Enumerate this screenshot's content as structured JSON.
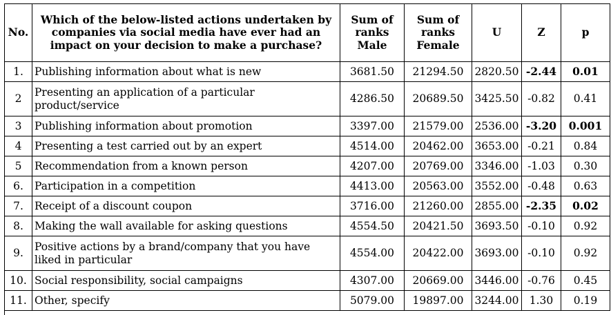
{
  "headers": {
    "no": "No.",
    "question": "Which of the below-listed actions undertaken by companies via social media have ever had an impact on your decision to make a purchase?",
    "sum_male": "Sum of ranks Male",
    "sum_female": "Sum of ranks Female",
    "u": "U",
    "z": "Z",
    "p": "p"
  },
  "rows": [
    {
      "no": "1.",
      "action": "Publishing information about what is new",
      "male": "3681.50",
      "female": "21294.50",
      "u": "2820.50",
      "z": "-2.44",
      "p": "0.01",
      "significant": true,
      "tall": false
    },
    {
      "no": "2",
      "action": "Presenting an application of a particular product/service",
      "male": "4286.50",
      "female": "20689.50",
      "u": "3425.50",
      "z": "-0.82",
      "p": "0.41",
      "significant": false,
      "tall": true
    },
    {
      "no": "3",
      "action": "Publishing information about promotion",
      "male": "3397.00",
      "female": "21579.00",
      "u": "2536.00",
      "z": "-3.20",
      "p": "0.001",
      "significant": true,
      "tall": false
    },
    {
      "no": "4",
      "action": "Presenting a test carried out by an expert",
      "male": "4514.00",
      "female": "20462.00",
      "u": "3653.00",
      "z": "-0.21",
      "p": "0.84",
      "significant": false,
      "tall": false
    },
    {
      "no": "5",
      "action": "Recommendation from a known person",
      "male": "4207.00",
      "female": "20769.00",
      "u": "3346.00",
      "z": "-1.03",
      "p": "0.30",
      "significant": false,
      "tall": false
    },
    {
      "no": "6.",
      "action": "Participation in a competition",
      "male": "4413.00",
      "female": "20563.00",
      "u": "3552.00",
      "z": "-0.48",
      "p": "0.63",
      "significant": false,
      "tall": false
    },
    {
      "no": "7.",
      "action": "Receipt of a discount coupon",
      "male": "3716.00",
      "female": "21260.00",
      "u": "2855.00",
      "z": "-2.35",
      "p": "0.02",
      "significant": true,
      "tall": false
    },
    {
      "no": "8.",
      "action": "Making the wall available for asking questions",
      "male": "4554.50",
      "female": "20421.50",
      "u": "3693.50",
      "z": "-0.10",
      "p": "0.92",
      "significant": false,
      "tall": false
    },
    {
      "no": "9.",
      "action": "Positive actions by a brand/company that you have liked in particular",
      "male": "4554.00",
      "female": "20422.00",
      "u": "3693.00",
      "z": "-0.10",
      "p": "0.92",
      "significant": false,
      "tall": true
    },
    {
      "no": "10.",
      "action": "Social responsibility, social campaigns",
      "male": "4307.00",
      "female": "20669.00",
      "u": "3446.00",
      "z": "-0.76",
      "p": "0.45",
      "significant": false,
      "tall": false
    },
    {
      "no": "11.",
      "action": "Other, specify",
      "male": "5079.00",
      "female": "19897.00",
      "u": "3244.00",
      "z": "1.30",
      "p": "0.19",
      "significant": false,
      "tall": false
    }
  ]
}
